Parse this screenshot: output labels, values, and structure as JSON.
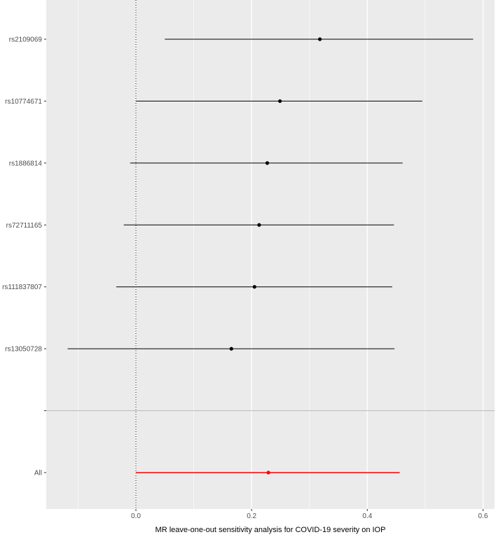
{
  "chart_data": {
    "type": "forest",
    "xlabel": "MR leave-one-out sensitivity analysis for COVID-19 severity on IOP",
    "ylabel": "",
    "xlim": [
      -0.155,
      0.62
    ],
    "x_ticks": [
      0.0,
      0.2,
      0.4,
      0.6
    ],
    "x_tick_labels": [
      "0.0",
      "0.2",
      "0.4",
      "0.6"
    ],
    "reference_line_x": 0,
    "grid": true,
    "rows": [
      {
        "label": "rs2109069",
        "estimate": 0.318,
        "lower": 0.05,
        "upper": 0.583,
        "color": "#000000"
      },
      {
        "label": "rs10774671",
        "estimate": 0.249,
        "lower": 0.0,
        "upper": 0.495,
        "color": "#000000"
      },
      {
        "label": "rs1886814",
        "estimate": 0.227,
        "lower": -0.01,
        "upper": 0.461,
        "color": "#000000"
      },
      {
        "label": "rs72711165",
        "estimate": 0.213,
        "lower": -0.021,
        "upper": 0.446,
        "color": "#000000"
      },
      {
        "label": "rs111837807",
        "estimate": 0.205,
        "lower": -0.034,
        "upper": 0.443,
        "color": "#000000"
      },
      {
        "label": "rs13050728",
        "estimate": 0.165,
        "lower": -0.118,
        "upper": 0.447,
        "color": "#000000"
      },
      {
        "label": "",
        "separator": true
      },
      {
        "label": "All",
        "estimate": 0.229,
        "lower": 0.0,
        "upper": 0.456,
        "color": "#ff0000"
      }
    ],
    "colors": {
      "panel_background": "#ebebeb",
      "grid": "#ffffff",
      "separator": "#bebebe",
      "summary": "#ff0000",
      "points": "#000000"
    }
  }
}
